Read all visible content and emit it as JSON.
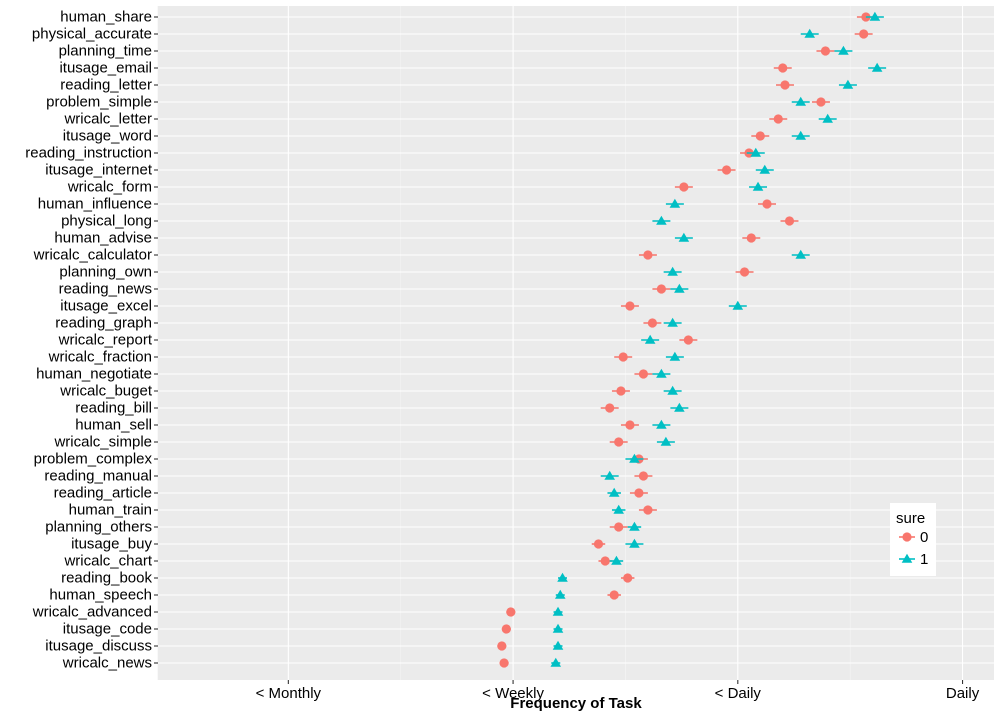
{
  "chart_data": {
    "type": "scatter",
    "xlabel": "Frequency of Task",
    "x_ticks": [
      "< Monthly",
      "< Weekly",
      "< Daily",
      "Daily"
    ],
    "x_tick_values": [
      1,
      2,
      3,
      4
    ],
    "xlim": [
      0.42,
      4.14
    ],
    "grid": true,
    "legend": {
      "title": "sure",
      "position": "right",
      "entries": [
        {
          "label": "0",
          "shape": "circle",
          "color": "#F8766D"
        },
        {
          "label": "1",
          "shape": "triangle",
          "color": "#00BFC4"
        }
      ]
    },
    "categories": [
      "human_share",
      "physical_accurate",
      "planning_time",
      "itusage_email",
      "reading_letter",
      "problem_simple",
      "wricalc_letter",
      "itusage_word",
      "reading_instruction",
      "itusage_internet",
      "wricalc_form",
      "human_influence",
      "physical_long",
      "human_advise",
      "wricalc_calculator",
      "planning_own",
      "reading_news",
      "itusage_excel",
      "reading_graph",
      "wricalc_report",
      "wricalc_fraction",
      "human_negotiate",
      "wricalc_buget",
      "reading_bill",
      "human_sell",
      "wricalc_simple",
      "problem_complex",
      "reading_manual",
      "reading_article",
      "human_train",
      "planning_others",
      "itusage_buy",
      "wricalc_chart",
      "reading_book",
      "human_speech",
      "wricalc_advanced",
      "itusage_code",
      "itusage_discuss",
      "wricalc_news"
    ],
    "series": [
      {
        "name": "0",
        "color": "#F8766D",
        "shape": "circle",
        "values": [
          3.57,
          3.56,
          3.39,
          3.2,
          3.21,
          3.37,
          3.18,
          3.1,
          3.05,
          2.95,
          2.76,
          3.13,
          3.23,
          3.06,
          2.6,
          3.03,
          2.66,
          2.52,
          2.62,
          2.78,
          2.49,
          2.58,
          2.48,
          2.43,
          2.52,
          2.47,
          2.56,
          2.58,
          2.56,
          2.6,
          2.47,
          2.38,
          2.41,
          2.51,
          2.45,
          1.99,
          1.97,
          1.95,
          1.96
        ],
        "err": [
          0.04,
          0.04,
          0.04,
          0.04,
          0.04,
          0.04,
          0.04,
          0.04,
          0.04,
          0.04,
          0.04,
          0.04,
          0.04,
          0.04,
          0.04,
          0.04,
          0.04,
          0.04,
          0.04,
          0.04,
          0.04,
          0.04,
          0.04,
          0.04,
          0.04,
          0.04,
          0.04,
          0.04,
          0.04,
          0.04,
          0.04,
          0.03,
          0.03,
          0.03,
          0.03,
          0.02,
          0.02,
          0.02,
          0.02
        ]
      },
      {
        "name": "1",
        "color": "#00BFC4",
        "shape": "triangle",
        "values": [
          3.61,
          3.32,
          3.47,
          3.62,
          3.49,
          3.28,
          3.4,
          3.28,
          3.08,
          3.12,
          3.09,
          2.72,
          2.66,
          2.76,
          3.28,
          2.71,
          2.74,
          3.0,
          2.71,
          2.61,
          2.72,
          2.66,
          2.71,
          2.74,
          2.66,
          2.68,
          2.54,
          2.43,
          2.45,
          2.47,
          2.54,
          2.54,
          2.46,
          2.22,
          2.21,
          2.2,
          2.2,
          2.2,
          2.19
        ],
        "err": [
          0.04,
          0.04,
          0.04,
          0.04,
          0.04,
          0.04,
          0.04,
          0.04,
          0.04,
          0.04,
          0.04,
          0.04,
          0.04,
          0.04,
          0.04,
          0.04,
          0.04,
          0.04,
          0.04,
          0.04,
          0.04,
          0.04,
          0.04,
          0.04,
          0.04,
          0.04,
          0.04,
          0.04,
          0.03,
          0.03,
          0.03,
          0.04,
          0.03,
          0.02,
          0.02,
          0.02,
          0.02,
          0.02,
          0.02
        ]
      }
    ]
  }
}
